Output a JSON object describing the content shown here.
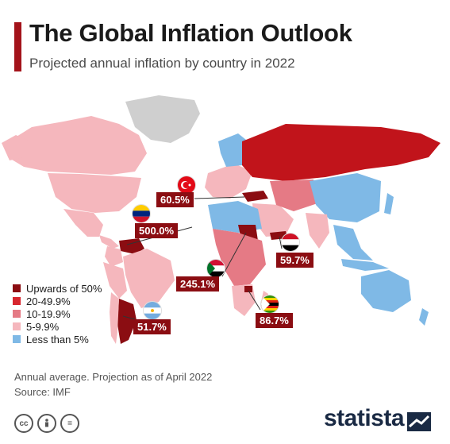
{
  "title": "The Global Inflation Outlook",
  "subtitle": "Projected annual inflation by country in 2022",
  "legend": [
    {
      "label": "Upwards of 50%",
      "color": "#8b0d12"
    },
    {
      "label": "20-49.9%",
      "color": "#d7262e"
    },
    {
      "label": "10-19.9%",
      "color": "#e57a85"
    },
    {
      "label": "5-9.9%",
      "color": "#f5b7bd"
    },
    {
      "label": "Less than 5%",
      "color": "#7fb9e6"
    }
  ],
  "callouts": {
    "turkey": {
      "value": "60.5%",
      "flag_icon": "turkey-flag-icon"
    },
    "venezuela": {
      "value": "500.0%",
      "flag_icon": "venezuela-flag-icon"
    },
    "yemen": {
      "value": "59.7%",
      "flag_icon": "yemen-flag-icon"
    },
    "sudan": {
      "value": "245.1%",
      "flag_icon": "sudan-flag-icon"
    },
    "zimbabwe": {
      "value": "86.7%",
      "flag_icon": "zimbabwe-flag-icon"
    },
    "argentina": {
      "value": "51.7%",
      "flag_icon": "argentina-flag-icon"
    }
  },
  "note": "Annual average. Projection as of April 2022",
  "source": "Source: IMF",
  "license_icons": [
    "cc",
    "by",
    "="
  ],
  "brand": "statista"
}
